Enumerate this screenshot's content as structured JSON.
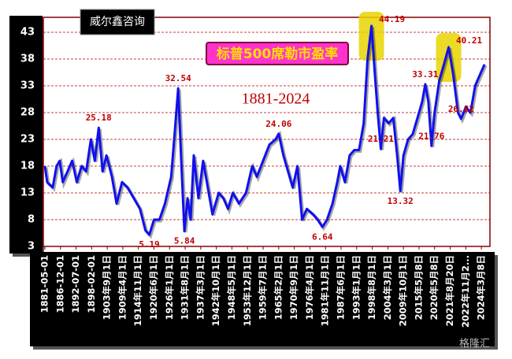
{
  "brand": "威尔鑫咨询",
  "watermark": "格隆汇",
  "chart_data": {
    "type": "line",
    "title": "标普500席勒市盈率",
    "subtitle": "1881-2024",
    "grid": true,
    "xlim": [
      -0.1,
      28.55
    ],
    "ylim": [
      3,
      45.8
    ],
    "yticks": [
      3,
      8,
      13,
      18,
      23,
      28,
      33,
      38,
      43
    ],
    "xticks": [
      {
        "value": 0,
        "label": "1881-05-01"
      },
      {
        "value": 1,
        "label": "1886-12-01"
      },
      {
        "value": 2,
        "label": "1892-07-01"
      },
      {
        "value": 3,
        "label": "1898-02-01"
      },
      {
        "value": 4,
        "label": "1903年9月1日"
      },
      {
        "value": 5,
        "label": "1909年4月1日"
      },
      {
        "value": 6,
        "label": "1914年11月1日"
      },
      {
        "value": 7,
        "label": "1920年6月1日"
      },
      {
        "value": 8,
        "label": "1926年1月1日"
      },
      {
        "value": 9,
        "label": "1931年8月1日"
      },
      {
        "value": 10,
        "label": "1937年3月1日"
      },
      {
        "value": 11,
        "label": "1942年10月1日"
      },
      {
        "value": 12,
        "label": "1948年5月1日"
      },
      {
        "value": 13,
        "label": "1953年12月1日"
      },
      {
        "value": 14,
        "label": "1959年7月1日"
      },
      {
        "value": 15,
        "label": "1965年2月1日"
      },
      {
        "value": 16,
        "label": "1970年9月1日"
      },
      {
        "value": 17,
        "label": "1976年4月1日"
      },
      {
        "value": 18,
        "label": "1981年11月1日"
      },
      {
        "value": 19,
        "label": "1987年6月1日"
      },
      {
        "value": 20,
        "label": "1993年1月1日"
      },
      {
        "value": 21,
        "label": "1998年8月1日"
      },
      {
        "value": 22,
        "label": "2004年3月1日"
      },
      {
        "value": 23,
        "label": "2009年10月1日"
      },
      {
        "value": 24,
        "label": "2015年5月8日"
      },
      {
        "value": 25,
        "label": "2020年5月8日"
      },
      {
        "value": 26,
        "label": "2021年8月20日"
      },
      {
        "value": 27,
        "label": "2022年11月2..."
      },
      {
        "value": 28,
        "label": "2024年3月8日"
      }
    ],
    "series": [
      {
        "name": "PE",
        "color": "#1010ee",
        "x": [
          0,
          0.15,
          0.5,
          0.75,
          0.95,
          1.15,
          1.45,
          1.75,
          2.05,
          2.35,
          2.65,
          2.95,
          3.2,
          3.45,
          3.7,
          3.95,
          4.3,
          4.6,
          4.95,
          5.3,
          5.7,
          6.1,
          6.45,
          6.7,
          7.0,
          7.35,
          7.7,
          8.1,
          8.35,
          8.55,
          8.75,
          8.95,
          9.15,
          9.35,
          9.55,
          9.85,
          10.15,
          10.45,
          10.75,
          11.15,
          11.45,
          11.75,
          12.05,
          12.45,
          12.9,
          13.3,
          13.6,
          14.0,
          14.4,
          14.8,
          15.0,
          15.3,
          15.6,
          15.9,
          16.2,
          16.5,
          16.8,
          17.2,
          17.5,
          17.8,
          18.1,
          18.45,
          18.75,
          18.95,
          19.25,
          19.55,
          19.85,
          20.15,
          20.45,
          20.7,
          20.95,
          21.15,
          21.35,
          21.55,
          21.75,
          22.05,
          22.35,
          22.6,
          22.8,
          23.0,
          23.3,
          23.6,
          23.9,
          24.2,
          24.4,
          24.6,
          24.8,
          25.0,
          25.3,
          25.6,
          25.9,
          26.2,
          26.5,
          26.7,
          27.0,
          27.3,
          27.6,
          27.9,
          28.2
        ],
        "values": [
          18,
          15,
          14,
          18,
          19,
          15,
          17,
          19,
          15,
          18,
          17,
          23,
          19,
          25.18,
          17,
          20,
          16,
          11,
          15,
          14,
          12,
          10,
          6,
          5.19,
          8,
          8,
          11,
          16,
          25,
          32.54,
          19,
          5.84,
          12,
          8,
          20,
          12,
          19,
          14,
          9,
          13,
          12,
          10,
          13,
          11,
          13,
          18,
          16,
          19,
          22,
          23,
          24.06,
          20,
          17,
          14,
          18,
          8,
          10,
          9,
          8,
          6.64,
          8,
          11,
          15,
          18,
          15,
          20,
          21,
          21,
          26,
          38,
          44.19,
          36,
          28,
          21.21,
          27,
          26,
          27,
          20,
          13.32,
          20,
          23,
          24,
          27,
          30,
          33.31,
          30,
          21.76,
          28,
          34,
          37,
          40.21,
          35,
          28,
          26.82,
          29,
          28,
          33,
          35,
          37
        ]
      }
    ],
    "annotations": [
      {
        "x": 3.45,
        "value": 25.18
      },
      {
        "x": 8.55,
        "value": 32.54
      },
      {
        "x": 6.7,
        "value": 5.19
      },
      {
        "x": 8.95,
        "value": 5.84
      },
      {
        "x": 15.0,
        "value": 24.06
      },
      {
        "x": 17.8,
        "value": 6.64
      },
      {
        "x": 20.95,
        "value": 44.19,
        "highlight": true
      },
      {
        "x": 21.55,
        "value": 21.21
      },
      {
        "x": 22.8,
        "value": 13.32
      },
      {
        "x": 24.4,
        "value": 33.31
      },
      {
        "x": 24.8,
        "value": 21.76
      },
      {
        "x": 25.9,
        "value": 40.21,
        "highlight": true
      },
      {
        "x": 26.7,
        "value": 26.82
      }
    ]
  }
}
